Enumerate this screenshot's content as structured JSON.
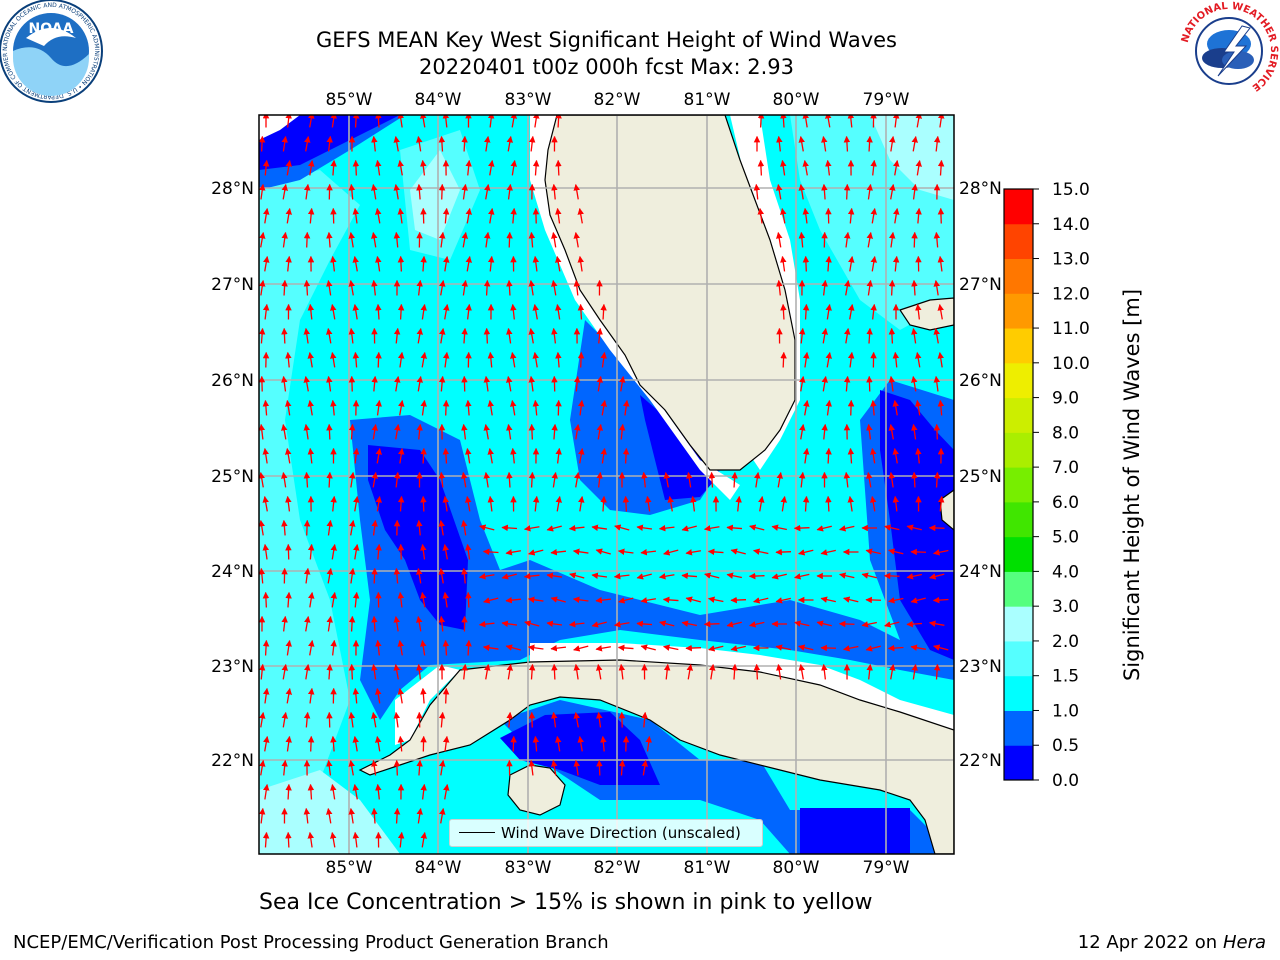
{
  "titles": {
    "line1": "GEFS MEAN Key West Significant Height of Wind Waves",
    "line2": "20220401 t00z 000h fcst   Max: 2.93"
  },
  "map": {
    "lon_labels": [
      "85°W",
      "84°W",
      "83°W",
      "82°W",
      "81°W",
      "80°W",
      "79°W"
    ],
    "lat_labels": [
      "28°N",
      "27°N",
      "26°N",
      "25°N",
      "24°N",
      "23°N",
      "22°N"
    ],
    "lon_range": [
      -86.0,
      -78.3
    ],
    "lat_range": [
      21.0,
      28.75
    ],
    "arrow_color": "#ff0000",
    "land_color": "#efeedd",
    "legend_label": "Wind Wave Direction (unscaled)"
  },
  "colorbar": {
    "label": "Significant Height of Wind Waves [m]",
    "ticks": [
      "0.0",
      "0.5",
      "1.0",
      "1.5",
      "2.0",
      "3.0",
      "4.0",
      "5.0",
      "6.0",
      "7.0",
      "8.0",
      "9.0",
      "10.0",
      "11.0",
      "12.0",
      "13.0",
      "14.0",
      "15.0"
    ],
    "colors": [
      "#0000ff",
      "#0066ff",
      "#00ffff",
      "#55ffff",
      "#aaffff",
      "#55ff7f",
      "#00e000",
      "#40e600",
      "#77ee00",
      "#aaee00",
      "#ccee00",
      "#eeee00",
      "#ffcc00",
      "#ff9900",
      "#ff7700",
      "#ff4400",
      "#ff0000"
    ]
  },
  "captions": {
    "sea_ice": "Sea Ice Concentration > 15% is shown in pink to yellow",
    "footer_left": "NCEP/EMC/Verification Post Processing Product Generation Branch",
    "footer_date": "12 Apr 2022 on ",
    "footer_host": "Hera"
  },
  "logos": {
    "noaa_text": "NOAA",
    "noaa_ring": "NATIONAL OCEANIC AND ATMOSPHERIC ADMINISTRATION • U.S. DEPARTMENT OF COMMERCE",
    "nws_ring": "NATIONAL WEATHER SERVICE"
  }
}
